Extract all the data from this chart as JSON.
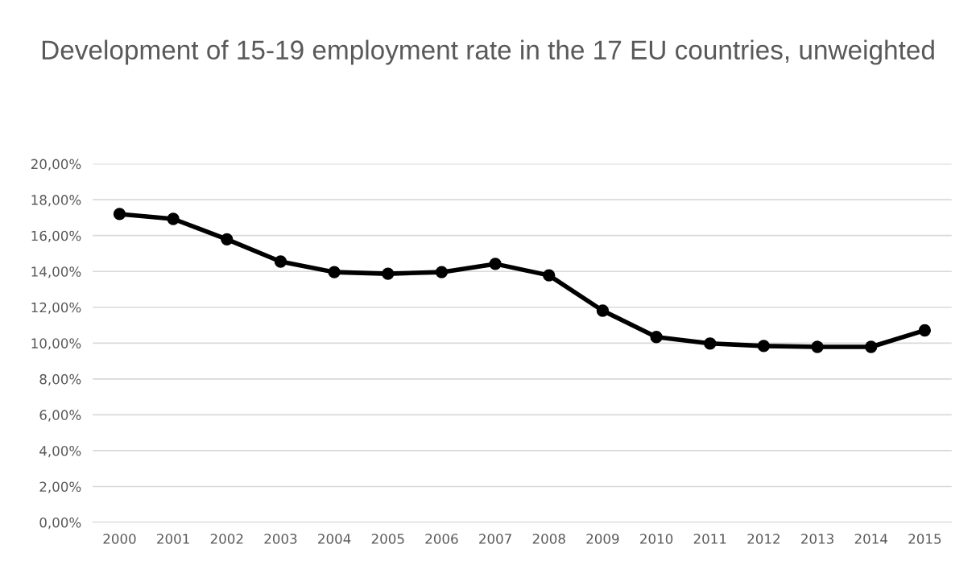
{
  "chart_data": {
    "type": "line",
    "title": "Development of 15-19 employment rate in the 17 EU countries, unweighted",
    "categories": [
      "2000",
      "2001",
      "2002",
      "2003",
      "2004",
      "2005",
      "2006",
      "2007",
      "2008",
      "2009",
      "2010",
      "2011",
      "2012",
      "2013",
      "2014",
      "2015"
    ],
    "series": [
      {
        "color": "#000000",
        "values": [
          17.2,
          16.93,
          15.79,
          14.55,
          13.96,
          13.87,
          13.96,
          14.42,
          13.78,
          11.81,
          10.34,
          9.98,
          9.84,
          9.79,
          9.79,
          10.71
        ]
      }
    ],
    "ylim": [
      0,
      20
    ],
    "yticks": [
      {
        "value": 0,
        "label": "0,00%"
      },
      {
        "value": 2,
        "label": "2,00%"
      },
      {
        "value": 4,
        "label": "4,00%"
      },
      {
        "value": 6,
        "label": "6,00%"
      },
      {
        "value": 8,
        "label": "8,00%"
      },
      {
        "value": 10,
        "label": "10,00%"
      },
      {
        "value": 12,
        "label": "12,00%"
      },
      {
        "value": 14,
        "label": "14,00%"
      },
      {
        "value": 16,
        "label": "16,00%"
      },
      {
        "value": 18,
        "label": "18,00%"
      },
      {
        "value": 20,
        "label": "20,00%"
      }
    ],
    "grid": "y",
    "marker": "circle",
    "line_style": "solid"
  }
}
